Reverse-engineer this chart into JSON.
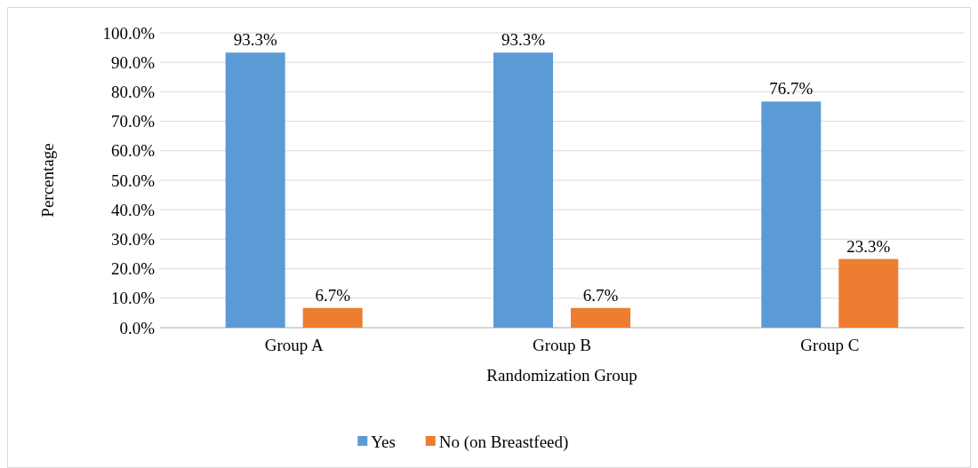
{
  "chart_data": {
    "type": "bar",
    "xlabel": "Randomization Group",
    "ylabel": "Percentage",
    "categories": [
      "Group A",
      "Group B",
      "Group C"
    ],
    "series": [
      {
        "name": "Yes",
        "color": "#5b9bd5",
        "values": [
          93.3,
          93.3,
          76.7
        ],
        "value_labels": [
          "93.3%",
          "93.3%",
          "76.7%"
        ]
      },
      {
        "name": "No (on Breastfeed)",
        "color": "#ed7d31",
        "values": [
          6.7,
          6.7,
          23.3
        ],
        "value_labels": [
          "6.7%",
          "6.7%",
          "23.3%"
        ]
      }
    ],
    "ylim": [
      0,
      100
    ],
    "yticks": [
      {
        "value": 0,
        "label": "0.0%"
      },
      {
        "value": 10,
        "label": "10.0%"
      },
      {
        "value": 20,
        "label": "20.0%"
      },
      {
        "value": 30,
        "label": "30.0%"
      },
      {
        "value": 40,
        "label": "40.0%"
      },
      {
        "value": 50,
        "label": "50.0%"
      },
      {
        "value": 60,
        "label": "60.0%"
      },
      {
        "value": 70,
        "label": "70.0%"
      },
      {
        "value": 80,
        "label": "80.0%"
      },
      {
        "value": 90,
        "label": "90.0%"
      },
      {
        "value": 100,
        "label": "100.0%"
      }
    ],
    "grid": "y",
    "legend": "bottom"
  }
}
